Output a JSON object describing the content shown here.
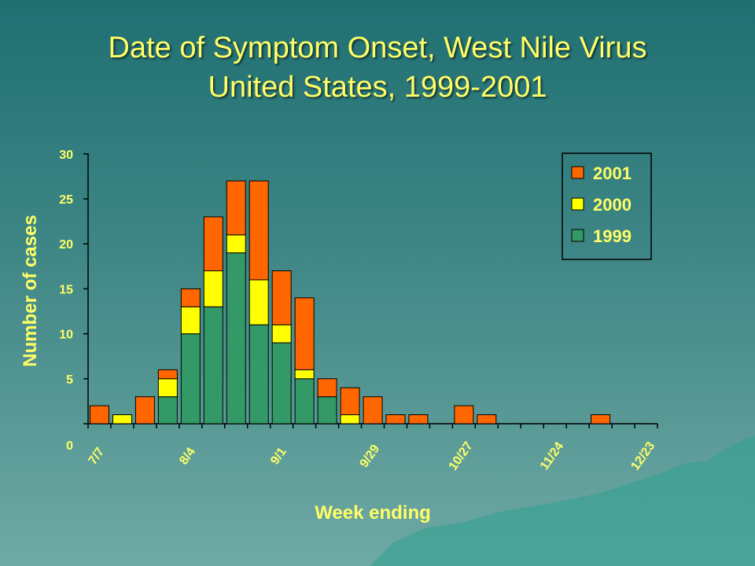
{
  "slide": {
    "title_line1": "Date of Symptom Onset, West Nile Virus",
    "title_line2": "United States, 1999-2001"
  },
  "chart_data": {
    "type": "bar",
    "stacked": true,
    "title": "Date of Symptom Onset, West Nile Virus United States, 1999-2001",
    "xlabel": "Week ending",
    "ylabel": "Number of cases",
    "ylim": [
      0,
      30
    ],
    "yticks": [
      0,
      5,
      10,
      15,
      20,
      25,
      30
    ],
    "xtick_labels": [
      "7/7",
      "8/4",
      "9/1",
      "9/29",
      "10/27",
      "11/24",
      "12/23"
    ],
    "categories": [
      "7/7",
      "7/14",
      "7/21",
      "7/28",
      "8/4",
      "8/11",
      "8/18",
      "8/25",
      "9/1",
      "9/8",
      "9/15",
      "9/22",
      "9/29",
      "10/6",
      "10/13",
      "10/20",
      "10/27",
      "11/3",
      "11/10",
      "11/17",
      "11/24",
      "12/1",
      "12/8",
      "12/15",
      "12/23"
    ],
    "series": [
      {
        "name": "1999",
        "color": "#339966",
        "values": [
          0,
          0,
          0,
          3,
          10,
          13,
          19,
          11,
          9,
          5,
          3,
          0,
          0,
          0,
          0,
          0,
          0,
          0,
          0,
          0,
          0,
          0,
          0,
          0,
          0
        ]
      },
      {
        "name": "2000",
        "color": "#ffff00",
        "values": [
          0,
          1,
          0,
          2,
          3,
          4,
          2,
          5,
          2,
          1,
          0,
          1,
          0,
          0,
          0,
          0,
          0,
          0,
          0,
          0,
          0,
          0,
          0,
          0,
          0
        ]
      },
      {
        "name": "2001",
        "color": "#ff6600",
        "values": [
          2,
          0,
          3,
          1,
          2,
          6,
          6,
          11,
          6,
          8,
          2,
          3,
          3,
          1,
          1,
          0,
          2,
          1,
          0,
          0,
          0,
          0,
          1,
          0,
          0
        ]
      }
    ],
    "legend": {
      "position": "top-right",
      "order": [
        "2001",
        "2000",
        "1999"
      ]
    },
    "grid": false
  }
}
